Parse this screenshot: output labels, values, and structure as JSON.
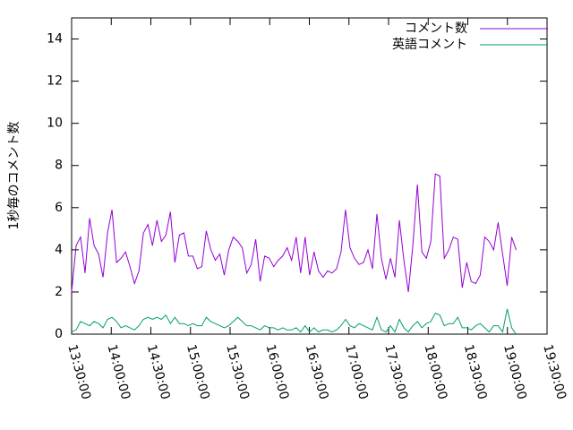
{
  "chart_data": {
    "type": "line",
    "ylabel": "1秒毎のコメント数",
    "x": [
      "13:30:00",
      "13:33:24",
      "13:36:48",
      "13:40:12",
      "13:43:36",
      "13:47:00",
      "13:50:24",
      "13:53:48",
      "13:57:12",
      "14:00:36",
      "14:04:00",
      "14:07:24",
      "14:10:48",
      "14:14:12",
      "14:17:36",
      "14:21:00",
      "14:24:24",
      "14:27:48",
      "14:31:12",
      "14:34:36",
      "14:38:00",
      "14:41:24",
      "14:44:48",
      "14:48:12",
      "14:51:36",
      "14:55:00",
      "14:58:24",
      "15:01:48",
      "15:05:12",
      "15:08:36",
      "15:12:00",
      "15:15:24",
      "15:18:48",
      "15:22:12",
      "15:25:36",
      "15:29:00",
      "15:32:24",
      "15:35:48",
      "15:39:12",
      "15:42:36",
      "15:46:00",
      "15:49:24",
      "15:52:48",
      "15:56:12",
      "15:59:36",
      "16:03:00",
      "16:06:24",
      "16:09:48",
      "16:13:12",
      "16:16:36",
      "16:20:00",
      "16:23:24",
      "16:26:48",
      "16:30:12",
      "16:33:36",
      "16:37:00",
      "16:40:24",
      "16:43:48",
      "16:47:12",
      "16:50:36",
      "16:54:00",
      "16:57:24",
      "17:00:48",
      "17:04:12",
      "17:07:36",
      "17:11:00",
      "17:14:24",
      "17:17:48",
      "17:21:12",
      "17:24:36",
      "17:28:00",
      "17:31:24",
      "17:34:48",
      "17:38:12",
      "17:41:36",
      "17:45:00",
      "17:48:24",
      "17:51:48",
      "17:55:12",
      "17:58:36",
      "18:02:00",
      "18:05:24",
      "18:08:48",
      "18:12:12",
      "18:15:36",
      "18:19:00",
      "18:22:24",
      "18:25:48",
      "18:29:12",
      "18:32:36",
      "18:36:00",
      "18:39:24",
      "18:42:48",
      "18:46:12",
      "18:49:36",
      "18:53:00",
      "18:56:24",
      "18:59:48",
      "19:03:12",
      "19:06:36"
    ],
    "series": [
      {
        "name": "コメント数",
        "color": "#9400d3",
        "values": [
          2.0,
          4.2,
          4.6,
          2.9,
          5.5,
          4.2,
          3.8,
          2.7,
          4.8,
          5.9,
          3.4,
          3.6,
          3.9,
          3.2,
          2.4,
          3.0,
          4.8,
          5.2,
          4.2,
          5.4,
          4.4,
          4.7,
          5.8,
          3.4,
          4.7,
          4.8,
          3.7,
          3.7,
          3.1,
          3.2,
          4.9,
          4.0,
          3.5,
          3.8,
          2.8,
          4.0,
          4.6,
          4.4,
          4.1,
          2.9,
          3.3,
          4.5,
          2.5,
          3.7,
          3.6,
          3.2,
          3.5,
          3.7,
          4.1,
          3.5,
          4.6,
          2.9,
          4.6,
          2.8,
          3.9,
          3.0,
          2.7,
          3.0,
          2.9,
          3.1,
          3.9,
          5.9,
          4.1,
          3.6,
          3.3,
          3.4,
          4.0,
          3.1,
          5.7,
          3.6,
          2.6,
          3.6,
          2.7,
          5.4,
          3.5,
          2.0,
          4.2,
          7.1,
          3.9,
          3.6,
          4.4,
          7.6,
          7.5,
          3.6,
          4.0,
          4.6,
          4.5,
          2.2,
          3.4,
          2.5,
          2.4,
          2.8,
          4.6,
          4.4,
          4.0,
          5.3,
          3.8,
          2.3,
          4.6,
          4.0
        ]
      },
      {
        "name": "英語コメント",
        "color": "#009e73",
        "values": [
          0.1,
          0.2,
          0.6,
          0.5,
          0.4,
          0.6,
          0.5,
          0.3,
          0.7,
          0.8,
          0.6,
          0.3,
          0.4,
          0.3,
          0.2,
          0.4,
          0.7,
          0.8,
          0.7,
          0.8,
          0.7,
          0.9,
          0.5,
          0.8,
          0.5,
          0.5,
          0.4,
          0.5,
          0.4,
          0.4,
          0.8,
          0.6,
          0.5,
          0.4,
          0.3,
          0.4,
          0.6,
          0.8,
          0.6,
          0.4,
          0.4,
          0.3,
          0.2,
          0.4,
          0.3,
          0.3,
          0.2,
          0.3,
          0.2,
          0.2,
          0.3,
          0.1,
          0.4,
          0.1,
          0.3,
          0.1,
          0.2,
          0.2,
          0.1,
          0.2,
          0.4,
          0.7,
          0.4,
          0.3,
          0.5,
          0.4,
          0.3,
          0.2,
          0.8,
          0.2,
          0.1,
          0.4,
          0.1,
          0.7,
          0.3,
          0.1,
          0.4,
          0.6,
          0.3,
          0.5,
          0.6,
          1.0,
          0.9,
          0.4,
          0.5,
          0.5,
          0.8,
          0.3,
          0.3,
          0.2,
          0.4,
          0.5,
          0.3,
          0.1,
          0.4,
          0.4,
          0.1,
          1.2,
          0.3,
          0.0
        ]
      }
    ],
    "xlim": [
      "13:30:00",
      "19:30:00"
    ],
    "xticks": [
      "13:30:00",
      "14:00:00",
      "14:30:00",
      "15:00:00",
      "15:30:00",
      "16:00:00",
      "16:30:00",
      "17:00:00",
      "17:30:00",
      "18:00:00",
      "18:30:00",
      "19:00:00",
      "19:30:00"
    ],
    "ylim": [
      0,
      15
    ],
    "yticks": [
      0,
      2,
      4,
      6,
      8,
      10,
      12,
      14
    ],
    "legend": "top-right"
  }
}
